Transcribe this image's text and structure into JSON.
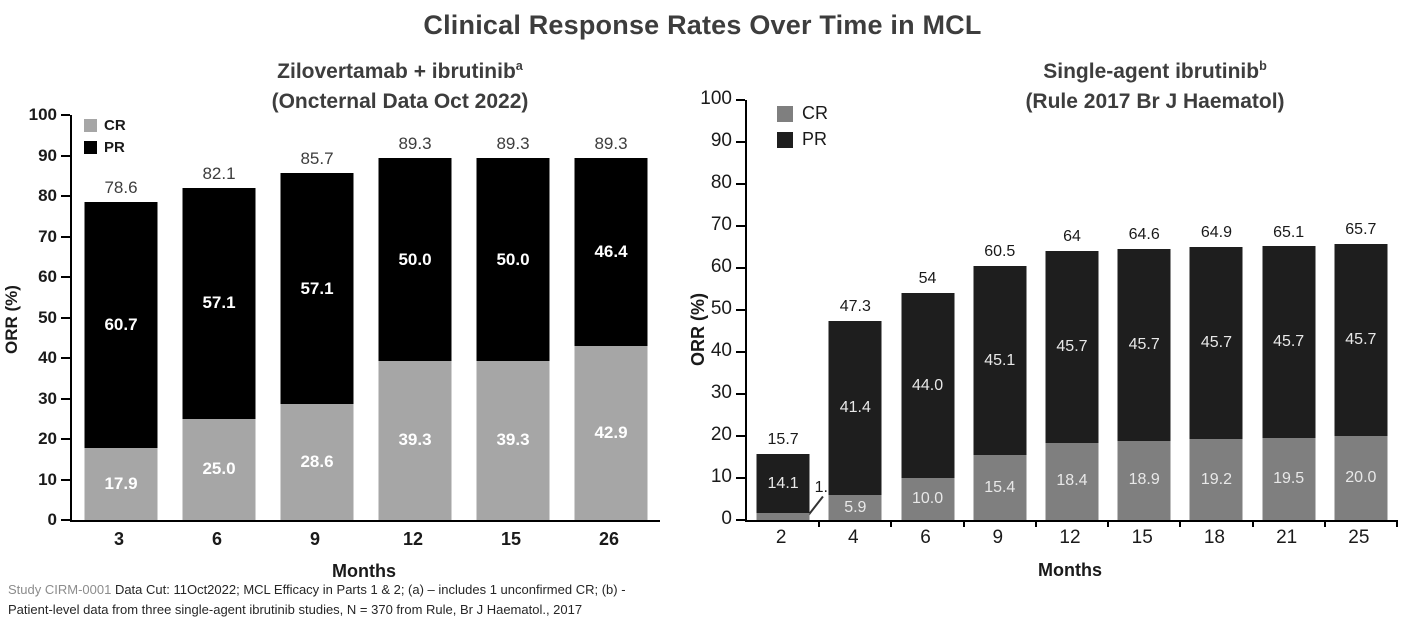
{
  "page": {
    "title": "Clinical Response Rates Over Time in MCL"
  },
  "footnote": {
    "study": "Study CIRM-0001",
    "line1_rest": " Data Cut: 11Oct2022; MCL Efficacy in Parts 1 & 2; (a) – includes 1 unconfirmed CR; (b) -",
    "line2": "Patient-level data from three single-agent ibrutinib studies, N = 370 from Rule, Br J Haematol., 2017"
  },
  "chart_data": [
    {
      "type": "bar",
      "stacked": true,
      "title": "Zilovertamab + ibrutinib",
      "title_sup": "a",
      "subtitle": "(Oncternal Data Oct 2022)",
      "xlabel": "Months",
      "ylabel": "ORR (%)",
      "ylim": [
        0,
        100
      ],
      "ytick_step": 10,
      "grid": false,
      "legend_position": "top-left-inside",
      "categories": [
        "3",
        "6",
        "9",
        "12",
        "15",
        "26"
      ],
      "series": [
        {
          "name": "CR",
          "color": "#a6a6a6",
          "values": [
            17.9,
            25.0,
            28.6,
            39.3,
            39.3,
            42.9
          ],
          "labels": [
            "17.9",
            "25.0",
            "28.6",
            "39.3",
            "39.3",
            "42.9"
          ]
        },
        {
          "name": "PR",
          "color": "#000000",
          "values": [
            60.7,
            57.1,
            57.1,
            50.0,
            50.0,
            46.4
          ],
          "labels": [
            "60.7",
            "57.1",
            "57.1",
            "50.0",
            "50.0",
            "46.4"
          ]
        }
      ],
      "totals": [
        78.6,
        82.1,
        85.7,
        89.3,
        89.3,
        89.3
      ],
      "total_labels": [
        "78.6",
        "82.1",
        "85.7",
        "89.3",
        "89.3",
        "89.3"
      ],
      "x_tick_marks_between": false,
      "outside_cr_labels": []
    },
    {
      "type": "bar",
      "stacked": true,
      "title": "Single-agent ibrutinib",
      "title_sup": "b",
      "subtitle": "(Rule 2017 Br J Haematol)",
      "xlabel": "Months",
      "ylabel": "ORR (%)",
      "ylim": [
        0,
        100
      ],
      "ytick_step": 10,
      "grid": false,
      "legend_position": "top-left-inside",
      "categories": [
        "2",
        "4",
        "6",
        "9",
        "12",
        "15",
        "18",
        "21",
        "25"
      ],
      "series": [
        {
          "name": "CR",
          "color": "#7f7f7f",
          "values": [
            1.6,
            5.9,
            10.0,
            15.4,
            18.4,
            18.9,
            19.2,
            19.5,
            20.0
          ],
          "labels": [
            "1.6",
            "5.9",
            "10.0",
            "15.4",
            "18.4",
            "18.9",
            "19.2",
            "19.5",
            "20.0"
          ]
        },
        {
          "name": "PR",
          "color": "#1e1e1e",
          "values": [
            14.1,
            41.4,
            44.0,
            45.1,
            45.7,
            45.7,
            45.7,
            45.7,
            45.7
          ],
          "labels": [
            "14.1",
            "41.4",
            "44.0",
            "45.1",
            "45.7",
            "45.7",
            "45.7",
            "45.7",
            "45.7"
          ]
        }
      ],
      "totals": [
        15.7,
        47.3,
        54,
        60.5,
        64,
        64.6,
        64.9,
        65.1,
        65.7
      ],
      "total_labels": [
        "15.7",
        "47.3",
        "54",
        "60.5",
        "64",
        "64.6",
        "64.9",
        "65.1",
        "65.7"
      ],
      "x_tick_marks_between": true,
      "outside_cr_labels": [
        0
      ]
    }
  ]
}
